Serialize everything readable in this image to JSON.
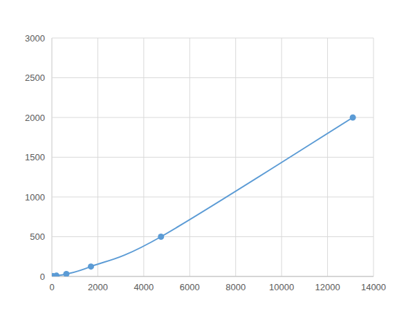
{
  "chart_data": {
    "type": "line",
    "x": [
      50,
      200,
      630,
      1700,
      4750,
      13100
    ],
    "values": [
      5,
      10,
      30,
      125,
      500,
      2000
    ],
    "color": "#5b9bd5",
    "marker": "circle",
    "line_style": "smooth",
    "xlim": [
      0,
      14000
    ],
    "xticks": [
      0,
      2000,
      4000,
      6000,
      8000,
      10000,
      12000,
      14000
    ],
    "ylim": [
      0,
      3000
    ],
    "yticks": [
      0,
      500,
      1000,
      1500,
      2000,
      2500,
      3000
    ],
    "grid": true
  }
}
